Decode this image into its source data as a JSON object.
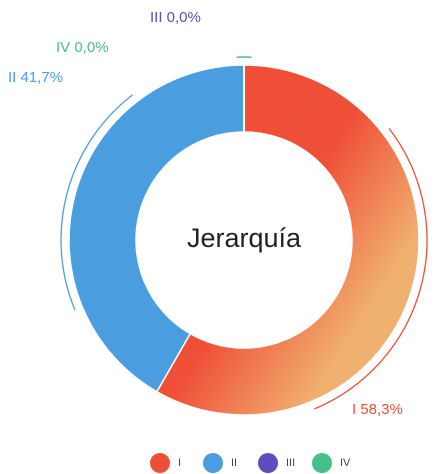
{
  "chart_data": {
    "type": "donut",
    "title": "Jerarquía",
    "series": [
      {
        "name": "I",
        "color": "#ef4f37",
        "values": [
          58.3
        ],
        "value_labels": [
          "I 58,3%"
        ]
      },
      {
        "name": "II",
        "color": "#4a9ee0",
        "values": [
          41.7
        ],
        "value_labels": [
          "II 41,7%"
        ]
      },
      {
        "name": "III",
        "color": "#5a4ec0",
        "values": [
          0.0
        ],
        "value_labels": [
          "III 0,0%"
        ]
      },
      {
        "name": "IV",
        "color": "#46c08a",
        "values": [
          0.0
        ],
        "value_labels": [
          "IV 0,0%"
        ]
      }
    ]
  }
}
